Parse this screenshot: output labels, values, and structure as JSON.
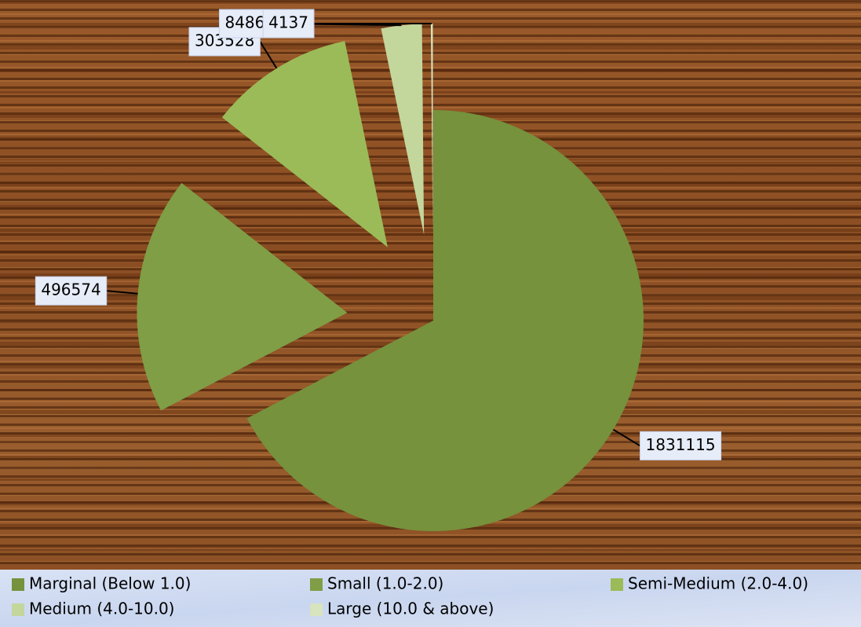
{
  "chart_data": {
    "type": "pie",
    "categories": [
      "Marginal (Below 1.0)",
      "Small (1.0-2.0)",
      "Semi-Medium (2.0-4.0)",
      "Medium (4.0-10.0)",
      "Large (10.0 & above)"
    ],
    "values": [
      1831115,
      496574,
      303528,
      84869,
      4137
    ],
    "colors": [
      "#76923c",
      "#7f9e45",
      "#9bbb59",
      "#c3d69b",
      "#d7e4bd"
    ],
    "legend": "bottom"
  }
}
